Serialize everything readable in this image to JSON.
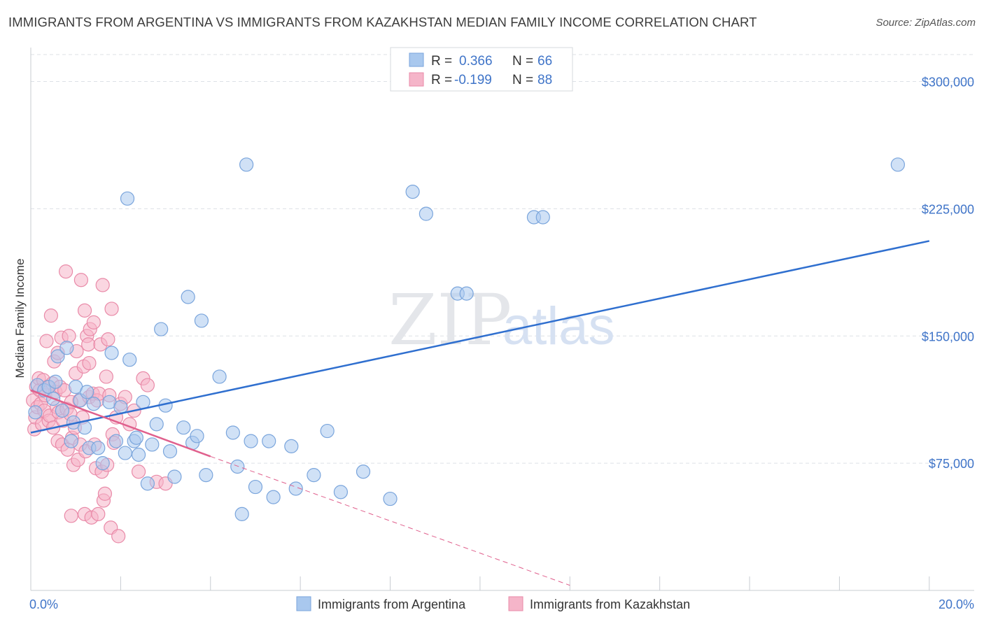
{
  "title": "IMMIGRANTS FROM ARGENTINA VS IMMIGRANTS FROM KAZAKHSTAN MEDIAN FAMILY INCOME CORRELATION CHART",
  "source": "Source: ZipAtlas.com",
  "watermark": {
    "zip": "ZIP",
    "atlas": "atlas"
  },
  "colors": {
    "blue_fill": "#a9c8ee",
    "blue_stroke": "#7aa5dc",
    "blue_line": "#2f6fcf",
    "pink_fill": "#f5b5c9",
    "pink_stroke": "#e98aa8",
    "pink_line": "#e0608d",
    "label_blue": "#3f74c8",
    "grid": "#dde1e6"
  },
  "legend": {
    "row1": {
      "r_label": "R =",
      "r_value": "0.366",
      "n_label": "N =",
      "n_value": "66"
    },
    "row2": {
      "r_label": "R =",
      "r_value": "-0.199",
      "n_label": "N =",
      "n_value": "88"
    }
  },
  "chart_data": {
    "type": "scatter",
    "title": "IMMIGRANTS FROM ARGENTINA VS IMMIGRANTS FROM KAZAKHSTAN MEDIAN FAMILY INCOME CORRELATION CHART",
    "xlabel": "",
    "ylabel": "Median Family Income",
    "xlim": [
      0,
      21
    ],
    "ylim": [
      0,
      320000
    ],
    "x_tick_labels": {
      "left": "0.0%",
      "right": "20.0%"
    },
    "y_ticks": [
      {
        "value": 300000,
        "label": "$300,000"
      },
      {
        "value": 225000,
        "label": "$225,000"
      },
      {
        "value": 150000,
        "label": "$150,000"
      },
      {
        "value": 75000,
        "label": "$75,000"
      }
    ],
    "series": [
      {
        "name": "Immigrants from Argentina",
        "color": "blue",
        "trend": {
          "x": [
            0,
            20
          ],
          "y": [
            93000,
            206000
          ]
        },
        "points": [
          [
            0.1,
            105000
          ],
          [
            0.15,
            121000
          ],
          [
            0.3,
            118000
          ],
          [
            0.4,
            120000
          ],
          [
            0.5,
            113000
          ],
          [
            0.55,
            123000
          ],
          [
            0.6,
            138000
          ],
          [
            0.7,
            106000
          ],
          [
            0.8,
            143000
          ],
          [
            0.9,
            88000
          ],
          [
            0.95,
            99000
          ],
          [
            1.0,
            120000
          ],
          [
            1.1,
            112000
          ],
          [
            1.2,
            96000
          ],
          [
            1.25,
            117000
          ],
          [
            1.3,
            84000
          ],
          [
            1.4,
            110000
          ],
          [
            1.5,
            84000
          ],
          [
            1.6,
            75000
          ],
          [
            1.75,
            111000
          ],
          [
            1.8,
            140000
          ],
          [
            1.9,
            88000
          ],
          [
            2.0,
            108000
          ],
          [
            2.1,
            81000
          ],
          [
            2.15,
            231000
          ],
          [
            2.2,
            136000
          ],
          [
            2.3,
            88000
          ],
          [
            2.4,
            80000
          ],
          [
            2.5,
            111000
          ],
          [
            2.6,
            63000
          ],
          [
            2.7,
            86000
          ],
          [
            2.8,
            98000
          ],
          [
            2.9,
            154000
          ],
          [
            3.0,
            109000
          ],
          [
            3.1,
            82000
          ],
          [
            3.2,
            67000
          ],
          [
            3.4,
            96000
          ],
          [
            3.5,
            173000
          ],
          [
            3.6,
            87000
          ],
          [
            3.7,
            91000
          ],
          [
            3.8,
            159000
          ],
          [
            3.9,
            68000
          ],
          [
            4.2,
            126000
          ],
          [
            4.5,
            93000
          ],
          [
            4.6,
            73000
          ],
          [
            4.7,
            45000
          ],
          [
            4.8,
            251000
          ],
          [
            4.9,
            88000
          ],
          [
            5.0,
            61000
          ],
          [
            5.3,
            88000
          ],
          [
            5.4,
            55000
          ],
          [
            5.8,
            85000
          ],
          [
            5.9,
            60000
          ],
          [
            6.3,
            68000
          ],
          [
            6.6,
            94000
          ],
          [
            6.9,
            58000
          ],
          [
            7.4,
            70000
          ],
          [
            8.0,
            54000
          ],
          [
            8.5,
            235000
          ],
          [
            8.8,
            222000
          ],
          [
            9.5,
            175000
          ],
          [
            9.7,
            175000
          ],
          [
            11.2,
            220000
          ],
          [
            11.4,
            220000
          ],
          [
            19.3,
            251000
          ],
          [
            2.35,
            90000
          ]
        ]
      },
      {
        "name": "Immigrants from Kazakhstan",
        "color": "pink",
        "trend": {
          "x": [
            0,
            4
          ],
          "y": [
            118000,
            79000
          ]
        },
        "trend_dashed": {
          "x": [
            4,
            12
          ],
          "y": [
            79000,
            3000
          ]
        },
        "points": [
          [
            0.05,
            112000
          ],
          [
            0.08,
            95000
          ],
          [
            0.1,
            102000
          ],
          [
            0.12,
            120000
          ],
          [
            0.15,
            108000
          ],
          [
            0.18,
            125000
          ],
          [
            0.2,
            118000
          ],
          [
            0.22,
            110000
          ],
          [
            0.25,
            98000
          ],
          [
            0.28,
            124000
          ],
          [
            0.3,
            106000
          ],
          [
            0.32,
            115000
          ],
          [
            0.35,
            147000
          ],
          [
            0.38,
            120000
          ],
          [
            0.4,
            100000
          ],
          [
            0.42,
            103000
          ],
          [
            0.45,
            162000
          ],
          [
            0.48,
            122000
          ],
          [
            0.5,
            96000
          ],
          [
            0.52,
            135000
          ],
          [
            0.55,
            117000
          ],
          [
            0.58,
            108000
          ],
          [
            0.6,
            88000
          ],
          [
            0.62,
            105000
          ],
          [
            0.65,
            120000
          ],
          [
            0.68,
            149000
          ],
          [
            0.7,
            86000
          ],
          [
            0.72,
            100000
          ],
          [
            0.75,
            118000
          ],
          [
            0.78,
            188000
          ],
          [
            0.8,
            107000
          ],
          [
            0.82,
            83000
          ],
          [
            0.85,
            150000
          ],
          [
            0.88,
            104000
          ],
          [
            0.9,
            44000
          ],
          [
            0.92,
            90000
          ],
          [
            0.95,
            74000
          ],
          [
            0.98,
            96000
          ],
          [
            1.0,
            128000
          ],
          [
            1.02,
            141000
          ],
          [
            1.05,
            77000
          ],
          [
            1.08,
            112000
          ],
          [
            1.1,
            86000
          ],
          [
            1.12,
            183000
          ],
          [
            1.15,
            102000
          ],
          [
            1.18,
            132000
          ],
          [
            1.2,
            45000
          ],
          [
            1.22,
            82000
          ],
          [
            1.25,
            150000
          ],
          [
            1.28,
            145000
          ],
          [
            1.3,
            114000
          ],
          [
            1.32,
            154000
          ],
          [
            1.35,
            43000
          ],
          [
            1.38,
            116000
          ],
          [
            1.4,
            158000
          ],
          [
            1.42,
            86000
          ],
          [
            1.45,
            72000
          ],
          [
            1.48,
            112000
          ],
          [
            1.5,
            45000
          ],
          [
            1.52,
            116000
          ],
          [
            1.55,
            145000
          ],
          [
            1.58,
            70000
          ],
          [
            1.6,
            180000
          ],
          [
            1.62,
            53000
          ],
          [
            1.65,
            57000
          ],
          [
            1.68,
            126000
          ],
          [
            1.7,
            74000
          ],
          [
            1.72,
            148000
          ],
          [
            1.75,
            115000
          ],
          [
            1.78,
            37000
          ],
          [
            1.8,
            166000
          ],
          [
            1.82,
            92000
          ],
          [
            1.85,
            87000
          ],
          [
            1.9,
            102000
          ],
          [
            1.95,
            32000
          ],
          [
            2.0,
            110000
          ],
          [
            2.1,
            114000
          ],
          [
            2.2,
            98000
          ],
          [
            2.3,
            106000
          ],
          [
            2.4,
            70000
          ],
          [
            2.5,
            125000
          ],
          [
            2.6,
            121000
          ],
          [
            2.8,
            64000
          ],
          [
            3.0,
            63000
          ],
          [
            1.3,
            134000
          ],
          [
            1.2,
            165000
          ],
          [
            0.6,
            140000
          ],
          [
            0.9,
            111000
          ]
        ]
      }
    ],
    "legend_position": "bottom-center"
  },
  "bottom_legend": {
    "blue_label": "Immigrants from Argentina",
    "pink_label": "Immigrants from Kazakhstan"
  }
}
